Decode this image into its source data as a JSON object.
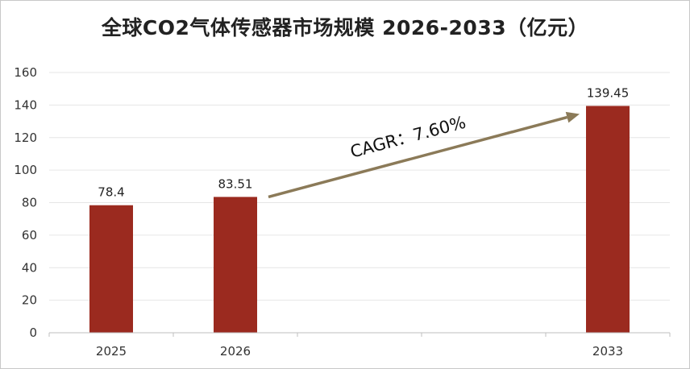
{
  "chart_data": {
    "type": "bar",
    "title": "全球CO2气体传感器市场规模 2026-2033（亿元）",
    "xlabel": "",
    "ylabel": "",
    "categories": [
      "2025",
      "2026",
      "",
      "",
      "2033"
    ],
    "values": [
      78.4,
      83.51,
      null,
      null,
      139.45
    ],
    "data_labels": [
      "78.4",
      "83.51",
      "",
      "",
      "139.45"
    ],
    "ylim": [
      0,
      160
    ],
    "yticks": [
      0,
      20,
      40,
      60,
      80,
      100,
      120,
      140,
      160
    ],
    "grid": true,
    "legend": "none",
    "annotation": {
      "text": "CAGR：7.60%",
      "type": "arrow",
      "from_category": "2026",
      "to_category": "2033"
    }
  },
  "colors": {
    "bar": "#9b2a1f",
    "arrow": "#8b7a58",
    "grid": "#e6e6e6",
    "axis": "#bfbfbf"
  }
}
